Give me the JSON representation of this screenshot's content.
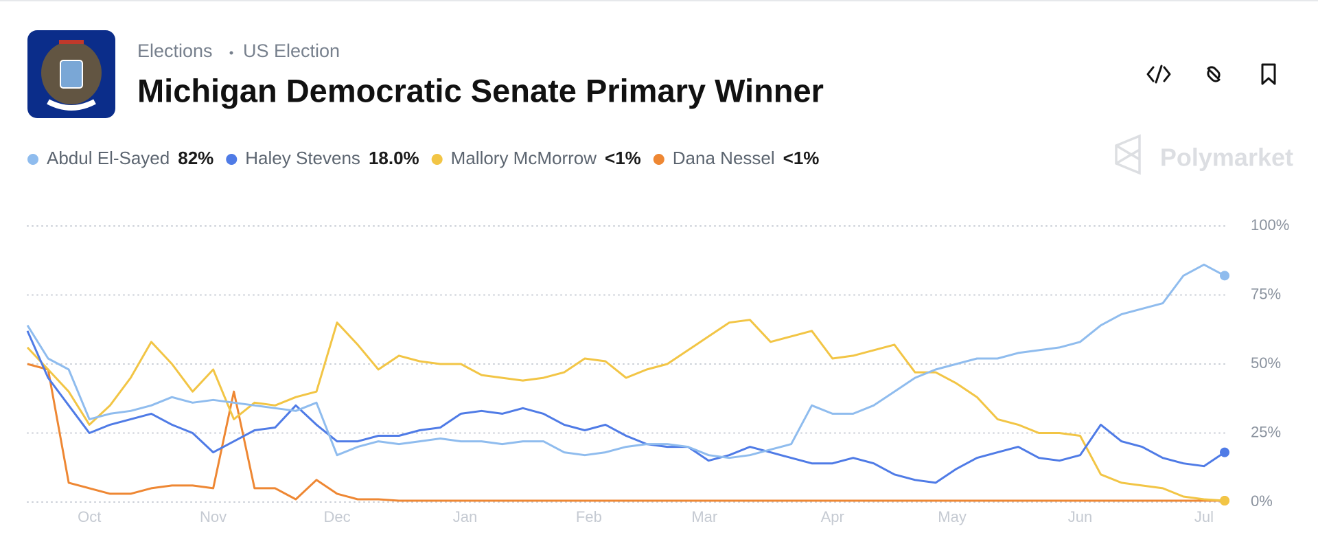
{
  "header": {
    "category": "Elections",
    "subcategory": "US Election",
    "watermark": "Polymarket"
  },
  "chart_data": {
    "type": "line",
    "title": "Michigan Democratic Senate Primary Winner",
    "x": [
      0,
      5,
      10,
      15,
      20,
      25,
      30,
      35,
      40,
      45,
      50,
      55,
      60,
      65,
      70,
      75,
      80,
      85,
      90,
      95,
      100,
      105,
      110,
      115,
      120,
      125,
      130,
      135,
      140,
      145,
      150,
      155,
      160,
      165,
      170,
      175,
      180,
      185,
      190,
      195,
      200,
      205,
      210,
      215,
      220,
      225,
      230,
      235,
      240,
      245,
      250,
      255,
      260,
      265,
      270,
      275,
      280,
      285,
      290
    ],
    "xlim": [
      0,
      290
    ],
    "xticks": [
      {
        "value": 15,
        "label": "Oct"
      },
      {
        "value": 45,
        "label": "Nov"
      },
      {
        "value": 75,
        "label": "Dec"
      },
      {
        "value": 106,
        "label": "Jan"
      },
      {
        "value": 136,
        "label": "Feb"
      },
      {
        "value": 164,
        "label": "Mar"
      },
      {
        "value": 195,
        "label": "Apr"
      },
      {
        "value": 224,
        "label": "May"
      },
      {
        "value": 255,
        "label": "Jun"
      },
      {
        "value": 285,
        "label": "Jul"
      }
    ],
    "ylim": [
      0,
      100
    ],
    "yticks": [
      {
        "value": 0,
        "label": "0%"
      },
      {
        "value": 25,
        "label": "25%"
      },
      {
        "value": 50,
        "label": "50%"
      },
      {
        "value": 75,
        "label": "75%"
      },
      {
        "value": 100,
        "label": "100%"
      }
    ],
    "grid": true,
    "series": [
      {
        "name": "Abdul El-Sayed",
        "color": "#8fbcee",
        "value_label": "82%",
        "values": [
          64,
          52,
          48,
          30,
          32,
          33,
          35,
          38,
          36,
          37,
          36,
          35,
          34,
          33,
          36,
          17,
          20,
          22,
          21,
          22,
          23,
          22,
          22,
          21,
          22,
          22,
          18,
          17,
          18,
          20,
          21,
          21,
          20,
          17,
          16,
          17,
          19,
          21,
          35,
          32,
          32,
          35,
          40,
          45,
          48,
          50,
          52,
          52,
          54,
          55,
          56,
          58,
          64,
          68,
          70,
          72,
          82,
          86,
          82
        ]
      },
      {
        "name": "Haley Stevens",
        "color": "#4f7be6",
        "value_label": "18.0%",
        "values": [
          62,
          45,
          35,
          25,
          28,
          30,
          32,
          28,
          25,
          18,
          22,
          26,
          27,
          35,
          28,
          22,
          22,
          24,
          24,
          26,
          27,
          32,
          33,
          32,
          34,
          32,
          28,
          26,
          28,
          24,
          21,
          20,
          20,
          15,
          17,
          20,
          18,
          16,
          14,
          14,
          16,
          14,
          10,
          8,
          7,
          12,
          16,
          18,
          20,
          16,
          15,
          17,
          28,
          22,
          20,
          16,
          14,
          13,
          18
        ]
      },
      {
        "name": "Mallory McMorrow",
        "color": "#f2c545",
        "value_label": "<1%",
        "values": [
          56,
          48,
          40,
          28,
          35,
          45,
          58,
          50,
          40,
          48,
          30,
          36,
          35,
          38,
          40,
          65,
          57,
          48,
          53,
          51,
          50,
          50,
          46,
          45,
          44,
          45,
          47,
          52,
          51,
          45,
          48,
          50,
          55,
          60,
          65,
          66,
          58,
          60,
          62,
          52,
          53,
          55,
          57,
          47,
          47,
          43,
          38,
          30,
          28,
          25,
          25,
          24,
          10,
          7,
          6,
          5,
          2,
          1,
          0.5
        ]
      },
      {
        "name": "Dana Nessel",
        "color": "#ee8733",
        "value_label": "<1%",
        "values": [
          50,
          48,
          7,
          5,
          3,
          3,
          5,
          6,
          6,
          5,
          40,
          5,
          5,
          1,
          8,
          3,
          1,
          1,
          0.5,
          0.5,
          0.5,
          0.5,
          0.5,
          0.5,
          0.5,
          0.5,
          0.5,
          0.5,
          0.5,
          0.5,
          0.5,
          0.5,
          0.5,
          0.5,
          0.5,
          0.5,
          0.5,
          0.5,
          0.5,
          0.5,
          0.5,
          0.5,
          0.5,
          0.5,
          0.5,
          0.5,
          0.5,
          0.5,
          0.5,
          0.5,
          0.5,
          0.5,
          0.5,
          0.5,
          0.5,
          0.5,
          0.5,
          0.5,
          0.5
        ]
      }
    ]
  }
}
